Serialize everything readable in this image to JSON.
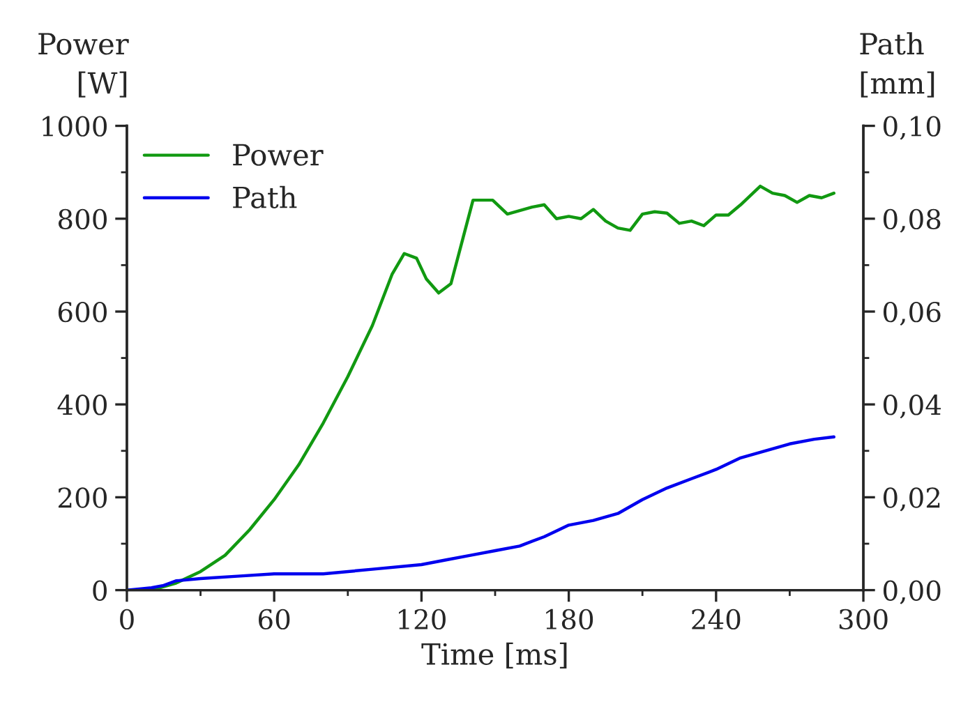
{
  "chart_data": {
    "type": "line",
    "xlabel": "Time [ms]",
    "ylabel": "Power\n[W]",
    "y2label": "Path\n[mm]",
    "xlim": [
      0,
      300
    ],
    "xticks": [
      0,
      60,
      120,
      180,
      240,
      300
    ],
    "ylim": [
      0,
      1000
    ],
    "yticks": [
      0,
      200,
      400,
      600,
      800,
      1000
    ],
    "y2lim": [
      0,
      0.1
    ],
    "y2ticks": [
      {
        "value": 0,
        "label": "0,00"
      },
      {
        "value": 0.02,
        "label": "0,02"
      },
      {
        "value": 0.04,
        "label": "0,04"
      },
      {
        "value": 0.06,
        "label": "0,06"
      },
      {
        "value": 0.08,
        "label": "0,08"
      },
      {
        "value": 0.1,
        "label": "0,10"
      }
    ],
    "legend": "top left",
    "grid": false,
    "series": [
      {
        "name": "Power",
        "color": "#119911",
        "x": [
          0,
          10,
          20,
          30,
          40,
          50,
          60,
          70,
          80,
          90,
          100,
          108,
          113,
          118,
          122,
          127,
          132,
          137,
          141,
          145,
          149,
          155,
          165,
          170,
          175,
          180,
          185,
          190,
          195,
          200,
          205,
          210,
          215,
          220,
          225,
          230,
          235,
          240,
          245,
          250,
          255,
          258,
          263,
          268,
          273,
          278,
          283,
          288
        ],
        "values": [
          0,
          0,
          15,
          40,
          75,
          130,
          195,
          270,
          360,
          460,
          570,
          680,
          725,
          715,
          670,
          640,
          660,
          760,
          840,
          840,
          840,
          810,
          825,
          830,
          800,
          805,
          800,
          820,
          795,
          780,
          775,
          810,
          815,
          812,
          790,
          795,
          785,
          808,
          808,
          830,
          855,
          870,
          855,
          850,
          835,
          850,
          845,
          855
        ]
      },
      {
        "name": "Path",
        "color": "#0000ee",
        "axis": "y2",
        "x": [
          0,
          10,
          15,
          20,
          30,
          45,
          60,
          80,
          100,
          120,
          130,
          140,
          150,
          160,
          170,
          180,
          190,
          200,
          210,
          220,
          230,
          240,
          250,
          260,
          270,
          280,
          288
        ],
        "values": [
          0,
          0.0005,
          0.001,
          0.002,
          0.0025,
          0.003,
          0.0035,
          0.0035,
          0.0045,
          0.0055,
          0.0065,
          0.0075,
          0.0085,
          0.0095,
          0.0115,
          0.014,
          0.015,
          0.0165,
          0.0195,
          0.022,
          0.024,
          0.026,
          0.0285,
          0.03,
          0.0315,
          0.0325,
          0.033
        ]
      }
    ]
  }
}
